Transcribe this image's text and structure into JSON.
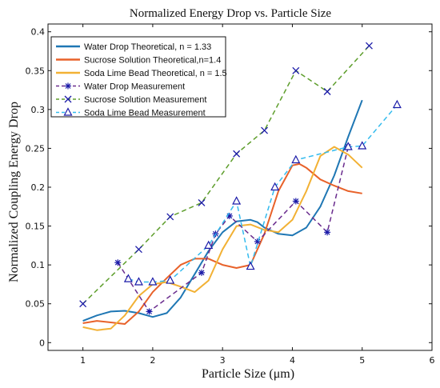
{
  "chart_data": {
    "type": "line",
    "title": "Normalized Energy Drop vs. Particle Size",
    "xlabel": "Particle Size (μm)",
    "ylabel": "Normalized Coupling Energy Drop",
    "xlim": [
      0.5,
      6
    ],
    "ylim": [
      -0.01,
      0.41
    ],
    "xticks": [
      1,
      2,
      3,
      4,
      5,
      6
    ],
    "yticks": [
      0,
      0.05,
      0.1,
      0.15,
      0.2,
      0.25,
      0.3,
      0.35,
      0.4
    ],
    "ytick_labels": [
      "0",
      "0.05",
      "0.1",
      "0.15",
      "0.2",
      "0.25",
      "0.3",
      "0.35",
      "0.4"
    ],
    "legend_position": "top-left",
    "grid": false,
    "series": [
      {
        "name": "Water Drop Theoretical, n = 1.33",
        "kind": "theoretical",
        "color": "#1f77b4",
        "line_style": "solid",
        "marker": "none",
        "x": [
          1.0,
          1.2,
          1.4,
          1.6,
          1.8,
          2.0,
          2.2,
          2.4,
          2.6,
          2.8,
          3.0,
          3.2,
          3.4,
          3.5,
          3.6,
          3.8,
          4.0,
          4.2,
          4.4,
          4.6,
          4.8,
          5.0
        ],
        "y": [
          0.028,
          0.035,
          0.04,
          0.041,
          0.038,
          0.033,
          0.038,
          0.058,
          0.088,
          0.118,
          0.142,
          0.156,
          0.158,
          0.155,
          0.148,
          0.14,
          0.138,
          0.148,
          0.175,
          0.215,
          0.265,
          0.312
        ]
      },
      {
        "name": "Sucrose Solution Theoretical,n=1.4",
        "kind": "theoretical",
        "color": "#e8622a",
        "line_style": "solid",
        "marker": "none",
        "x": [
          1.0,
          1.2,
          1.4,
          1.6,
          1.8,
          2.0,
          2.2,
          2.4,
          2.6,
          2.8,
          3.0,
          3.2,
          3.4,
          3.6,
          3.8,
          4.0,
          4.1,
          4.2,
          4.4,
          4.6,
          4.8,
          5.0
        ],
        "y": [
          0.025,
          0.028,
          0.026,
          0.024,
          0.04,
          0.065,
          0.083,
          0.1,
          0.108,
          0.108,
          0.1,
          0.096,
          0.1,
          0.14,
          0.195,
          0.228,
          0.23,
          0.225,
          0.21,
          0.202,
          0.195,
          0.192
        ]
      },
      {
        "name": "Soda Lime Bead Theoretical, n = 1.5",
        "kind": "theoretical",
        "color": "#f2b134",
        "line_style": "solid",
        "marker": "none",
        "x": [
          1.0,
          1.2,
          1.4,
          1.6,
          1.8,
          2.0,
          2.2,
          2.4,
          2.6,
          2.8,
          3.0,
          3.2,
          3.4,
          3.6,
          3.8,
          4.0,
          4.2,
          4.4,
          4.6,
          4.8,
          5.0
        ],
        "y": [
          0.02,
          0.016,
          0.018,
          0.035,
          0.06,
          0.075,
          0.078,
          0.072,
          0.065,
          0.08,
          0.12,
          0.15,
          0.152,
          0.145,
          0.142,
          0.158,
          0.195,
          0.24,
          0.252,
          0.242,
          0.225
        ]
      },
      {
        "name": "Water Drop Measurement",
        "kind": "measurement",
        "color": "#6a2c8e",
        "marker_color": "#1a1aa8",
        "line_style": "dashed",
        "marker": "asterisk",
        "x": [
          1.5,
          1.95,
          2.7,
          2.9,
          3.1,
          3.5,
          4.05,
          4.5,
          4.8
        ],
        "y": [
          0.103,
          0.04,
          0.09,
          0.14,
          0.163,
          0.13,
          0.182,
          0.142,
          0.252
        ]
      },
      {
        "name": "Sucrose Solution Measurement",
        "kind": "measurement",
        "color": "#5e9e2c",
        "marker_color": "#1a1aa8",
        "line_style": "dashed",
        "marker": "x",
        "x": [
          1.0,
          1.8,
          2.25,
          2.7,
          3.2,
          3.6,
          4.05,
          4.5,
          5.1
        ],
        "y": [
          0.05,
          0.12,
          0.162,
          0.18,
          0.243,
          0.273,
          0.35,
          0.323,
          0.382
        ]
      },
      {
        "name": "Soda Lime Bead Measurement",
        "kind": "measurement",
        "color": "#33bbee",
        "marker_color": "#1a1aa8",
        "line_style": "dashed",
        "marker": "triangle",
        "x": [
          1.65,
          1.8,
          2.0,
          2.25,
          2.8,
          3.2,
          3.4,
          3.75,
          4.05,
          4.8,
          5.0,
          5.5
        ],
        "y": [
          0.082,
          0.078,
          0.078,
          0.08,
          0.125,
          0.182,
          0.098,
          0.2,
          0.235,
          0.252,
          0.253,
          0.306
        ]
      }
    ]
  }
}
